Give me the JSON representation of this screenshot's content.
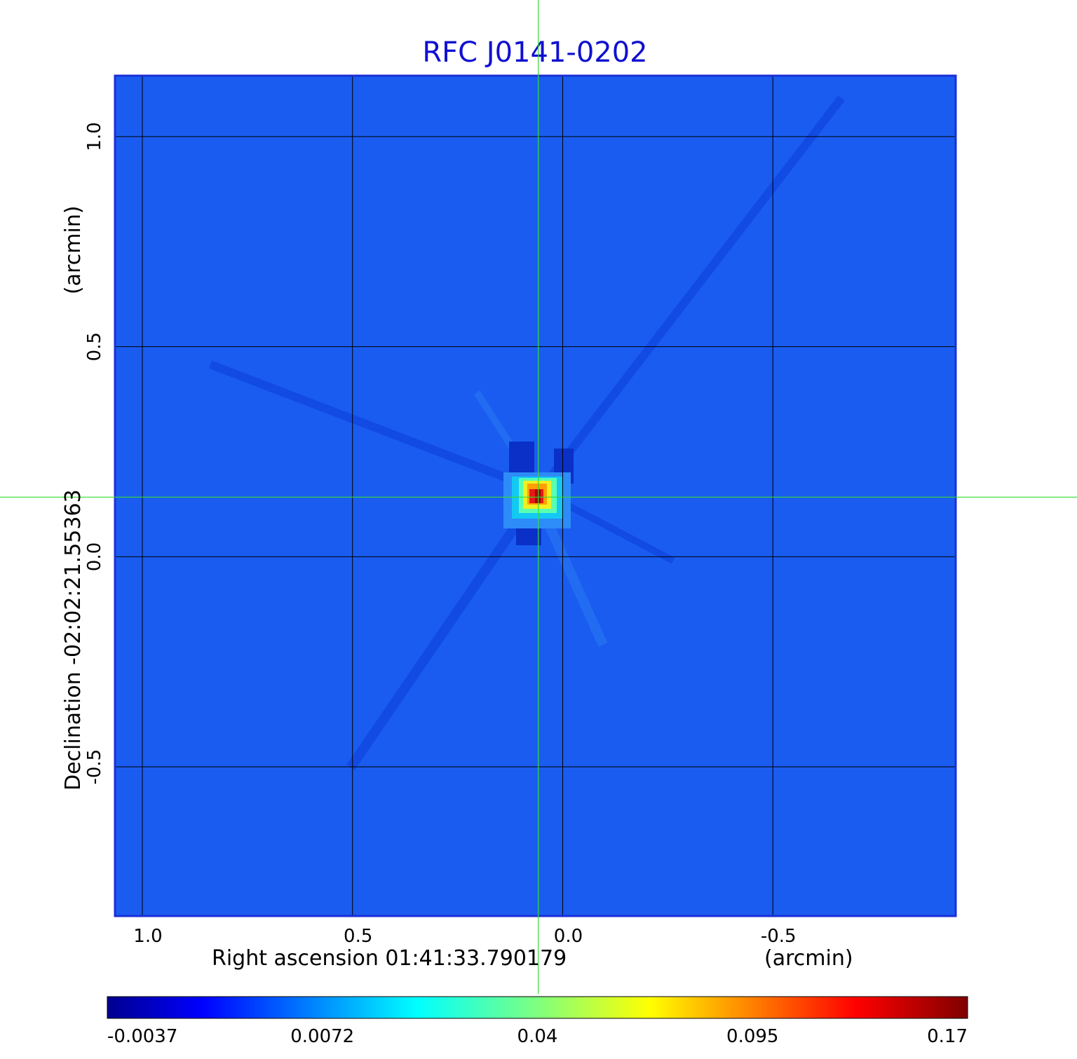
{
  "colors": {
    "background_field": "#1a5cf0",
    "grid": "#000000",
    "crosshair": "#33dd33",
    "title": "#1010d0"
  },
  "chart_data": {
    "type": "heatmap",
    "title": "RFC J0141-0202",
    "xlabel_main": "Right ascension  01:41:33.790179",
    "xlabel_unit": "(arcmin)",
    "ylabel_main": "Declination  -02:02:21.55363",
    "ylabel_unit": "(arcmin)",
    "x_ticks": [
      "1.0",
      "0.5",
      "0.0",
      "-0.5"
    ],
    "x_tick_values": [
      1.0,
      0.5,
      0.0,
      -0.5
    ],
    "y_ticks": [
      "1.0",
      "0.5",
      "0.0",
      "-0.5"
    ],
    "y_tick_values": [
      1.0,
      0.5,
      0.0,
      -0.5
    ],
    "xlim": [
      1.065,
      -0.935
    ],
    "ylim": [
      -0.855,
      1.145
    ],
    "x_reversed": true,
    "grid": true,
    "crosshair": {
      "x": 0.058,
      "y": 0.142
    },
    "source_peak": {
      "x": 0.058,
      "y": 0.148,
      "value": 0.17
    },
    "colorbar": {
      "colormap": "jet",
      "tick_labels": [
        "-0.0037",
        "0.0072",
        "0.04",
        "0.095",
        "0.17"
      ],
      "tick_values": [
        -0.0037,
        0.0072,
        0.04,
        0.095,
        0.17
      ],
      "orientation": "horizontal",
      "placement": "bottom"
    }
  }
}
